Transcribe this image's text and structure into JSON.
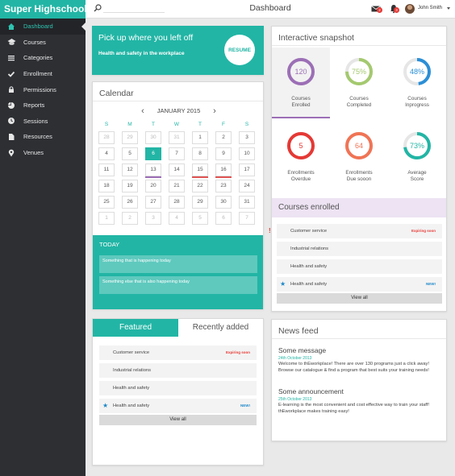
{
  "app": {
    "brand": "Super Highschool",
    "page_title": "Dashboard"
  },
  "topbar": {
    "user_name": "John Smith",
    "mail_badge": "2",
    "bell_badge": "3"
  },
  "sidebar": {
    "items": [
      {
        "label": "Dashboard",
        "icon": "home-icon",
        "active": true
      },
      {
        "label": "Courses",
        "icon": "graduation-cap-icon"
      },
      {
        "label": "Categories",
        "icon": "list-icon"
      },
      {
        "label": "Enrollment",
        "icon": "check-icon"
      },
      {
        "label": "Permissions",
        "icon": "lock-icon"
      },
      {
        "label": "Reports",
        "icon": "pie-chart-icon"
      },
      {
        "label": "Sessions",
        "icon": "clock-icon"
      },
      {
        "label": "Resources",
        "icon": "file-icon"
      },
      {
        "label": "Venues",
        "icon": "map-marker-icon"
      }
    ]
  },
  "resume": {
    "title": "Pick up where you left off",
    "subtitle": "Health and safety in the workplace",
    "button": "RESUME"
  },
  "calendar": {
    "title": "Calendar",
    "month": "JANUARY 2015",
    "days_of_week": [
      "S",
      "M",
      "T",
      "W",
      "T",
      "F",
      "S"
    ],
    "weeks": [
      [
        "28",
        "29",
        "30",
        "31",
        "1",
        "2",
        "3"
      ],
      [
        "4",
        "5",
        "6",
        "7",
        "8",
        "9",
        "10"
      ],
      [
        "11",
        "12",
        "13",
        "14",
        "15",
        "16",
        "17"
      ],
      [
        "18",
        "19",
        "20",
        "21",
        "22",
        "23",
        "24"
      ],
      [
        "25",
        "26",
        "27",
        "28",
        "29",
        "30",
        "31"
      ],
      [
        "1",
        "2",
        "3",
        "4",
        "5",
        "6",
        "7"
      ]
    ],
    "today_label": "TODAY",
    "today_events": [
      "Something that is happening today",
      "Something else that is also happening today"
    ]
  },
  "featured": {
    "tabs": [
      "Featured",
      "Recently added"
    ],
    "rows": [
      {
        "label": "Customer service",
        "tag": "Expiring soon",
        "tag_color": "#e53935"
      },
      {
        "label": "Industrial relations",
        "tag": ""
      },
      {
        "label": "Health and safety",
        "tag": ""
      },
      {
        "label": "Health and safety",
        "tag": "NEW!",
        "tag_color": "#1e88c8",
        "lead": "star-icon"
      }
    ],
    "view_all": "View all"
  },
  "snapshot": {
    "title": "Interactive snapshot",
    "items": [
      {
        "value": "120",
        "label1": "Courses",
        "label2": "Enrolled",
        "color": "#9c6fb6",
        "fraction": 1.0
      },
      {
        "value": "75%",
        "label1": "Courses",
        "label2": "Completed",
        "color": "#a4c96f",
        "fraction": 0.75
      },
      {
        "value": "48%",
        "label1": "Courses",
        "label2": "Inprogress",
        "color": "#2b8fd6",
        "fraction": 0.48
      },
      {
        "value": "5",
        "label1": "Enrollments",
        "label2": "Overdue",
        "color": "#e53935",
        "fraction": 1.0
      },
      {
        "value": "64",
        "label1": "Enrollments",
        "label2": "Due sooon",
        "color": "#f07455",
        "fraction": 1.0
      },
      {
        "value": "73%",
        "label1": "Average",
        "label2": "Score",
        "color": "#22b5a5",
        "fraction": 0.73
      }
    ]
  },
  "courses_enrolled": {
    "title": "Courses enrolled",
    "rows": [
      {
        "label": "Customer service",
        "tag": "Expiring soon",
        "tag_color": "#e53935",
        "lead": "exclamation-icon"
      },
      {
        "label": "Industrial relations",
        "tag": ""
      },
      {
        "label": "Health and safety",
        "tag": ""
      },
      {
        "label": "Health and safety",
        "tag": "NEW!",
        "tag_color": "#1e88c8",
        "lead": "star-icon"
      }
    ],
    "view_all": "View all"
  },
  "news": {
    "title": "News feed",
    "items": [
      {
        "title": "Some message",
        "date": "24th October 2013",
        "text": "Welcome to thEworkplace! There are over 130 programs just a click away! Browse our catalogue & find a program that best suits your training needs!"
      },
      {
        "title": "Some announcement",
        "date": "25th October 2013",
        "text": "E-learning is the most convenient and cost effective way to train your staff! thEworkplace makes training easy!"
      }
    ]
  },
  "colors": {
    "accent": "#22b5a5",
    "sidebar": "#2d2f33",
    "purple": "#9c6fb6"
  }
}
